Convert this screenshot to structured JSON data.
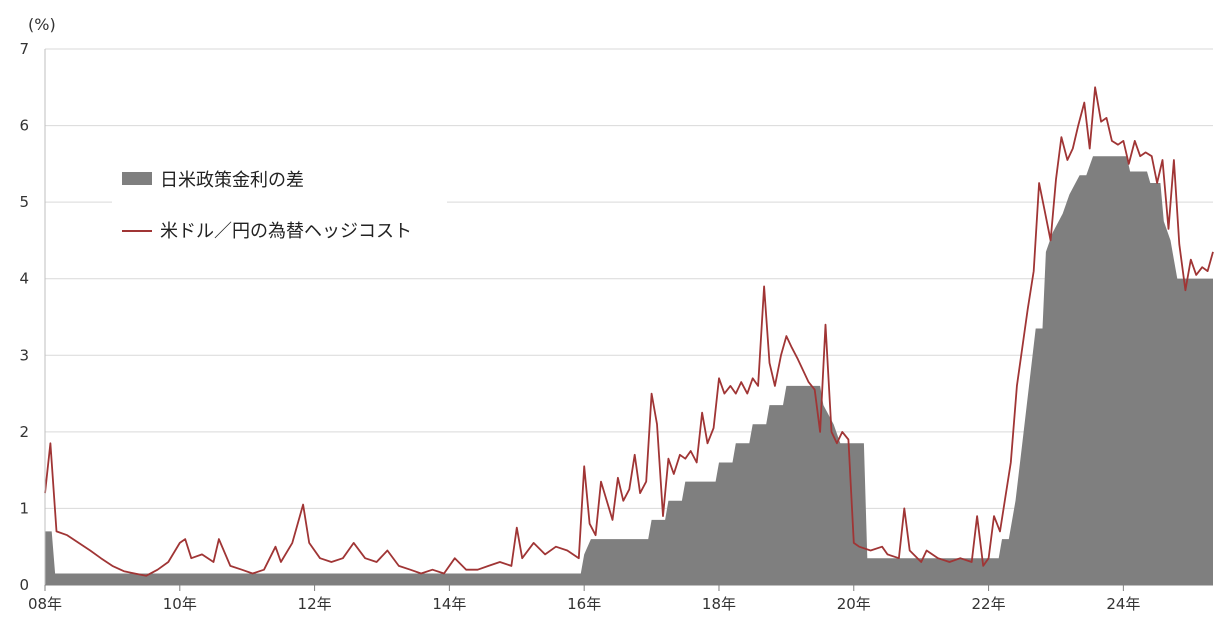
{
  "chart_data": {
    "type": "area",
    "unit_label": "(%)",
    "ylim": [
      0,
      7
    ],
    "yticks": [
      0,
      1,
      2,
      3,
      4,
      5,
      6,
      7
    ],
    "xlim": [
      2008.0,
      2024.7
    ],
    "xticks": [
      {
        "value": 2008,
        "label": "08年"
      },
      {
        "value": 2010,
        "label": "10年"
      },
      {
        "value": 2012,
        "label": "12年"
      },
      {
        "value": 2014,
        "label": "14年"
      },
      {
        "value": 2016,
        "label": "16年"
      },
      {
        "value": 2018,
        "label": "18年"
      },
      {
        "value": 2020,
        "label": "20年"
      },
      {
        "value": 2022,
        "label": "22年"
      },
      {
        "value": 2024,
        "label": "24年"
      }
    ],
    "grid": true,
    "legend": [
      {
        "key": "policy_rate_diff",
        "label": "日米政策金利の差",
        "marker": "box",
        "color": "#7f7f7f"
      },
      {
        "key": "hedge_cost",
        "label": "米ドル／円の為替ヘッジコスト",
        "marker": "line",
        "color": "#a03535"
      }
    ],
    "series": [
      {
        "key": "policy_rate_diff",
        "name": "日米政策金利の差",
        "kind": "area",
        "color": "#7f7f7f",
        "points": [
          [
            2008.0,
            0.7
          ],
          [
            2008.1,
            0.7
          ],
          [
            2008.15,
            0.15
          ],
          [
            2015.95,
            0.15
          ],
          [
            2016.0,
            0.4
          ],
          [
            2016.1,
            0.6
          ],
          [
            2016.95,
            0.6
          ],
          [
            2017.0,
            0.85
          ],
          [
            2017.2,
            0.85
          ],
          [
            2017.25,
            1.1
          ],
          [
            2017.45,
            1.1
          ],
          [
            2017.5,
            1.35
          ],
          [
            2017.95,
            1.35
          ],
          [
            2018.0,
            1.6
          ],
          [
            2018.2,
            1.6
          ],
          [
            2018.25,
            1.85
          ],
          [
            2018.45,
            1.85
          ],
          [
            2018.5,
            2.1
          ],
          [
            2018.7,
            2.1
          ],
          [
            2018.75,
            2.35
          ],
          [
            2018.95,
            2.35
          ],
          [
            2019.0,
            2.6
          ],
          [
            2019.5,
            2.6
          ],
          [
            2019.55,
            2.35
          ],
          [
            2019.7,
            2.1
          ],
          [
            2019.8,
            1.85
          ],
          [
            2020.15,
            1.85
          ],
          [
            2020.2,
            0.35
          ],
          [
            2022.15,
            0.35
          ],
          [
            2022.2,
            0.6
          ],
          [
            2022.3,
            0.6
          ],
          [
            2022.4,
            1.1
          ],
          [
            2022.5,
            1.85
          ],
          [
            2022.6,
            2.6
          ],
          [
            2022.7,
            3.35
          ],
          [
            2022.8,
            3.35
          ],
          [
            2022.85,
            4.35
          ],
          [
            2022.95,
            4.6
          ],
          [
            2023.1,
            4.85
          ],
          [
            2023.2,
            5.1
          ],
          [
            2023.35,
            5.35
          ],
          [
            2023.45,
            5.35
          ],
          [
            2023.55,
            5.6
          ],
          [
            2024.05,
            5.6
          ],
          [
            2024.1,
            5.4
          ],
          [
            2024.35,
            5.4
          ],
          [
            2024.4,
            5.25
          ],
          [
            2024.55,
            5.25
          ],
          [
            2024.6,
            4.75
          ],
          [
            2024.7,
            4.5
          ],
          [
            2024.75,
            4.25
          ],
          [
            2024.8,
            4.0
          ],
          [
            2024.9,
            4.0
          ],
          [
            2024.7,
            4.0
          ]
        ]
      },
      {
        "key": "hedge_cost",
        "name": "米ドル／円の為替ヘッジコスト",
        "kind": "line",
        "color": "#a03535",
        "points": [
          [
            2008.0,
            1.2
          ],
          [
            2008.08,
            1.85
          ],
          [
            2008.17,
            0.7
          ],
          [
            2008.33,
            0.65
          ],
          [
            2008.5,
            0.55
          ],
          [
            2008.67,
            0.45
          ],
          [
            2008.83,
            0.35
          ],
          [
            2009.0,
            0.25
          ],
          [
            2009.17,
            0.18
          ],
          [
            2009.33,
            0.15
          ],
          [
            2009.5,
            0.12
          ],
          [
            2009.67,
            0.2
          ],
          [
            2009.83,
            0.3
          ],
          [
            2010.0,
            0.55
          ],
          [
            2010.08,
            0.6
          ],
          [
            2010.17,
            0.35
          ],
          [
            2010.33,
            0.4
          ],
          [
            2010.5,
            0.3
          ],
          [
            2010.58,
            0.6
          ],
          [
            2010.75,
            0.25
          ],
          [
            2010.92,
            0.2
          ],
          [
            2011.08,
            0.15
          ],
          [
            2011.25,
            0.2
          ],
          [
            2011.42,
            0.5
          ],
          [
            2011.5,
            0.3
          ],
          [
            2011.67,
            0.55
          ],
          [
            2011.83,
            1.05
          ],
          [
            2011.92,
            0.55
          ],
          [
            2012.08,
            0.35
          ],
          [
            2012.25,
            0.3
          ],
          [
            2012.42,
            0.35
          ],
          [
            2012.58,
            0.55
          ],
          [
            2012.75,
            0.35
          ],
          [
            2012.92,
            0.3
          ],
          [
            2013.08,
            0.45
          ],
          [
            2013.25,
            0.25
          ],
          [
            2013.42,
            0.2
          ],
          [
            2013.58,
            0.15
          ],
          [
            2013.75,
            0.2
          ],
          [
            2013.92,
            0.15
          ],
          [
            2014.08,
            0.35
          ],
          [
            2014.25,
            0.2
          ],
          [
            2014.42,
            0.2
          ],
          [
            2014.58,
            0.25
          ],
          [
            2014.75,
            0.3
          ],
          [
            2014.92,
            0.25
          ],
          [
            2015.0,
            0.75
          ],
          [
            2015.08,
            0.35
          ],
          [
            2015.25,
            0.55
          ],
          [
            2015.42,
            0.4
          ],
          [
            2015.58,
            0.5
          ],
          [
            2015.75,
            0.45
          ],
          [
            2015.92,
            0.35
          ],
          [
            2016.0,
            1.55
          ],
          [
            2016.08,
            0.8
          ],
          [
            2016.17,
            0.65
          ],
          [
            2016.25,
            1.35
          ],
          [
            2016.42,
            0.85
          ],
          [
            2016.5,
            1.4
          ],
          [
            2016.58,
            1.1
          ],
          [
            2016.67,
            1.25
          ],
          [
            2016.75,
            1.7
          ],
          [
            2016.83,
            1.2
          ],
          [
            2016.92,
            1.35
          ],
          [
            2017.0,
            2.5
          ],
          [
            2017.08,
            2.1
          ],
          [
            2017.17,
            0.9
          ],
          [
            2017.25,
            1.65
          ],
          [
            2017.33,
            1.45
          ],
          [
            2017.42,
            1.7
          ],
          [
            2017.5,
            1.65
          ],
          [
            2017.58,
            1.75
          ],
          [
            2017.67,
            1.6
          ],
          [
            2017.75,
            2.25
          ],
          [
            2017.83,
            1.85
          ],
          [
            2017.92,
            2.05
          ],
          [
            2018.0,
            2.7
          ],
          [
            2018.08,
            2.5
          ],
          [
            2018.17,
            2.6
          ],
          [
            2018.25,
            2.5
          ],
          [
            2018.33,
            2.65
          ],
          [
            2018.42,
            2.5
          ],
          [
            2018.5,
            2.7
          ],
          [
            2018.58,
            2.6
          ],
          [
            2018.67,
            3.9
          ],
          [
            2018.75,
            2.9
          ],
          [
            2018.83,
            2.6
          ],
          [
            2018.92,
            3.0
          ],
          [
            2019.0,
            3.25
          ],
          [
            2019.08,
            3.1
          ],
          [
            2019.17,
            2.95
          ],
          [
            2019.25,
            2.8
          ],
          [
            2019.33,
            2.65
          ],
          [
            2019.42,
            2.55
          ],
          [
            2019.5,
            2.0
          ],
          [
            2019.58,
            3.4
          ],
          [
            2019.67,
            2.0
          ],
          [
            2019.75,
            1.85
          ],
          [
            2019.83,
            2.0
          ],
          [
            2019.92,
            1.9
          ],
          [
            2020.0,
            0.55
          ],
          [
            2020.08,
            0.5
          ],
          [
            2020.25,
            0.45
          ],
          [
            2020.42,
            0.5
          ],
          [
            2020.5,
            0.4
          ],
          [
            2020.67,
            0.35
          ],
          [
            2020.75,
            1.0
          ],
          [
            2020.83,
            0.45
          ],
          [
            2021.0,
            0.3
          ],
          [
            2021.08,
            0.45
          ],
          [
            2021.25,
            0.35
          ],
          [
            2021.42,
            0.3
          ],
          [
            2021.58,
            0.35
          ],
          [
            2021.75,
            0.3
          ],
          [
            2021.83,
            0.9
          ],
          [
            2021.92,
            0.25
          ],
          [
            2022.0,
            0.35
          ],
          [
            2022.08,
            0.9
          ],
          [
            2022.17,
            0.7
          ],
          [
            2022.25,
            1.15
          ],
          [
            2022.33,
            1.6
          ],
          [
            2022.42,
            2.6
          ],
          [
            2022.5,
            3.1
          ],
          [
            2022.58,
            3.6
          ],
          [
            2022.67,
            4.1
          ],
          [
            2022.75,
            5.25
          ],
          [
            2022.83,
            4.9
          ],
          [
            2022.92,
            4.5
          ],
          [
            2023.0,
            5.3
          ],
          [
            2023.08,
            5.85
          ],
          [
            2023.17,
            5.55
          ],
          [
            2023.25,
            5.7
          ],
          [
            2023.33,
            6.0
          ],
          [
            2023.42,
            6.3
          ],
          [
            2023.5,
            5.7
          ],
          [
            2023.58,
            6.5
          ],
          [
            2023.67,
            6.05
          ],
          [
            2023.75,
            6.1
          ],
          [
            2023.83,
            5.8
          ],
          [
            2023.92,
            5.75
          ],
          [
            2024.0,
            5.8
          ],
          [
            2024.08,
            5.5
          ],
          [
            2024.17,
            5.8
          ],
          [
            2024.25,
            5.6
          ],
          [
            2024.33,
            5.65
          ],
          [
            2024.42,
            5.6
          ],
          [
            2024.5,
            5.25
          ],
          [
            2024.58,
            5.55
          ],
          [
            2024.67,
            4.65
          ],
          [
            2024.75,
            5.55
          ],
          [
            2024.83,
            4.45
          ],
          [
            2024.92,
            3.85
          ],
          [
            2025.0,
            4.25
          ],
          [
            2025.08,
            4.05
          ],
          [
            2025.17,
            4.15
          ],
          [
            2025.25,
            4.1
          ],
          [
            2025.33,
            4.35
          ]
        ]
      }
    ]
  }
}
